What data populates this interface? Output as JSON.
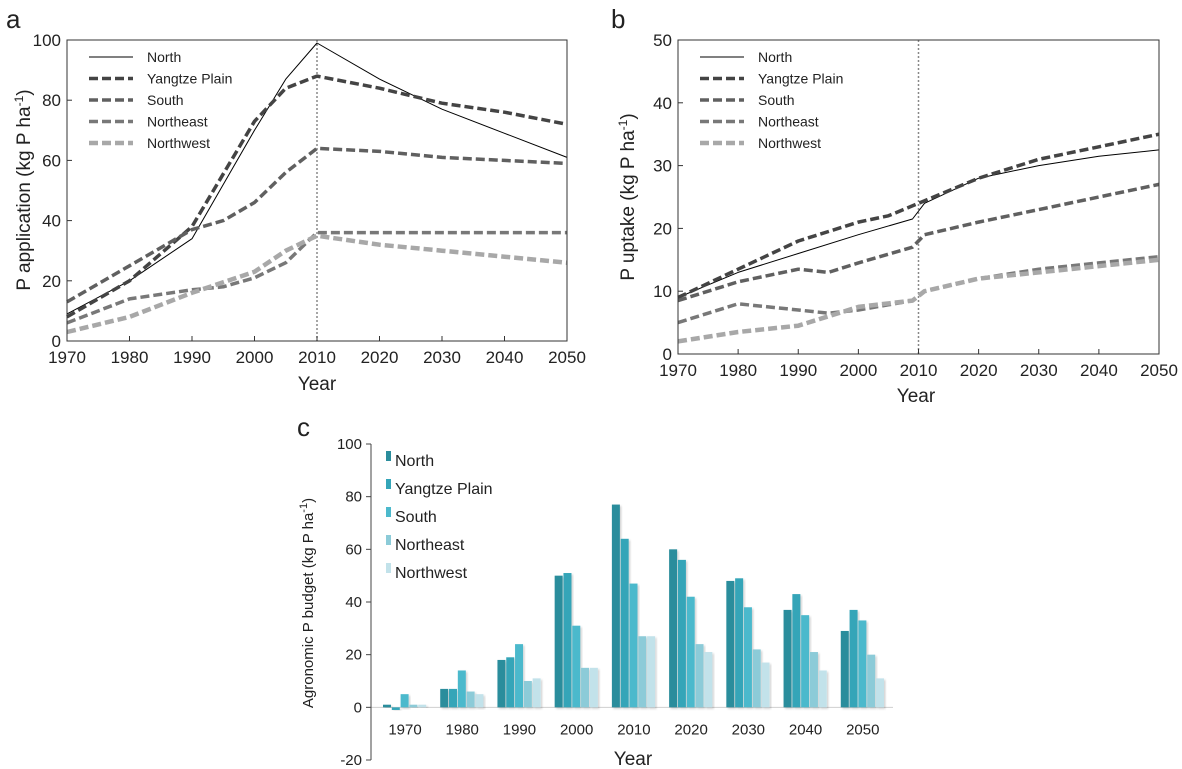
{
  "chart_data": [
    {
      "panel": "a",
      "type": "line",
      "xlabel": "Year",
      "ylabel": "P application (kg P ha-1)",
      "ylabel_parts": {
        "main": "P application (kg P ha",
        "sup": "-1",
        "end": ")"
      },
      "xlim": [
        1970,
        2050
      ],
      "ylim": [
        0,
        100
      ],
      "xticks": [
        1970,
        1980,
        1990,
        2000,
        2010,
        2020,
        2030,
        2040,
        2050
      ],
      "yticks": [
        0,
        20,
        40,
        60,
        80,
        100
      ],
      "vline_x": 2010,
      "legend_position": "top-left",
      "series": [
        {
          "name": "North",
          "color": "#000000",
          "style": "solid",
          "x": [
            1970,
            1980,
            1990,
            2000,
            2005,
            2010,
            2020,
            2030,
            2040,
            2050
          ],
          "y": [
            9,
            20,
            34,
            70,
            87,
            99,
            87,
            77,
            69,
            61
          ]
        },
        {
          "name": "Yangtze Plain",
          "color": "#444444",
          "style": "dashed",
          "x": [
            1970,
            1980,
            1990,
            2000,
            2005,
            2010,
            2020,
            2030,
            2040,
            2050
          ],
          "y": [
            8,
            20,
            38,
            73,
            84,
            88,
            84,
            79,
            76,
            72
          ]
        },
        {
          "name": "South",
          "color": "#606060",
          "style": "dashed",
          "x": [
            1970,
            1980,
            1990,
            1995,
            2000,
            2005,
            2010,
            2020,
            2030,
            2040,
            2050
          ],
          "y": [
            13,
            25,
            37,
            40,
            46,
            56,
            64,
            63,
            61,
            60,
            59
          ]
        },
        {
          "name": "Northeast",
          "color": "#787878",
          "style": "dashed",
          "x": [
            1970,
            1980,
            1990,
            1995,
            2000,
            2005,
            2010,
            2020,
            2030,
            2040,
            2050
          ],
          "y": [
            6,
            14,
            17,
            18,
            21,
            26,
            36,
            36,
            36,
            36,
            36
          ]
        },
        {
          "name": "Northwest",
          "color": "#a8a8a8",
          "style": "dashed",
          "x": [
            1970,
            1980,
            1990,
            2000,
            2005,
            2010,
            2020,
            2030,
            2040,
            2050
          ],
          "y": [
            3,
            8,
            16,
            23,
            30,
            35,
            32,
            30,
            28,
            26
          ]
        }
      ]
    },
    {
      "panel": "b",
      "type": "line",
      "xlabel": "Year",
      "ylabel": "P uptake (kg P ha-1)",
      "ylabel_parts": {
        "main": "P uptake (kg P ha",
        "sup": "-1",
        "end": ")"
      },
      "xlim": [
        1970,
        2050
      ],
      "ylim": [
        0,
        50
      ],
      "xticks": [
        1970,
        1980,
        1990,
        2000,
        2010,
        2020,
        2030,
        2040,
        2050
      ],
      "yticks": [
        0,
        10,
        20,
        30,
        40,
        50
      ],
      "vline_x": 2010,
      "legend_position": "top-left",
      "series": [
        {
          "name": "North",
          "color": "#000000",
          "style": "solid",
          "x": [
            1970,
            1980,
            1990,
            2000,
            2009,
            2011,
            2020,
            2030,
            2040,
            2050
          ],
          "y": [
            9,
            13,
            16,
            19,
            21.5,
            24,
            28,
            30,
            31.5,
            32.5
          ]
        },
        {
          "name": "Yangtze Plain",
          "color": "#444444",
          "style": "dashed",
          "x": [
            1970,
            1980,
            1990,
            2000,
            2005,
            2010,
            2020,
            2030,
            2040,
            2050
          ],
          "y": [
            9,
            13.5,
            18,
            21,
            22,
            24,
            28,
            31,
            33,
            35
          ]
        },
        {
          "name": "South",
          "color": "#606060",
          "style": "dashed",
          "x": [
            1970,
            1980,
            1990,
            1995,
            2000,
            2009,
            2011,
            2020,
            2030,
            2040,
            2050
          ],
          "y": [
            8.5,
            11.5,
            13.5,
            13,
            14.5,
            17,
            19,
            21,
            23,
            25,
            27
          ]
        },
        {
          "name": "Northeast",
          "color": "#787878",
          "style": "dashed",
          "x": [
            1970,
            1980,
            1990,
            1995,
            2000,
            2009,
            2011,
            2020,
            2030,
            2040,
            2050
          ],
          "y": [
            5,
            8,
            7,
            6.5,
            7,
            8.5,
            10,
            12,
            13.5,
            14.5,
            15.5
          ]
        },
        {
          "name": "Northwest",
          "color": "#a8a8a8",
          "style": "dashed",
          "x": [
            1970,
            1980,
            1990,
            2000,
            2009,
            2011,
            2020,
            2030,
            2040,
            2050
          ],
          "y": [
            2,
            3.5,
            4.5,
            7.5,
            8.5,
            10,
            12,
            13,
            14,
            15
          ]
        }
      ]
    },
    {
      "panel": "c",
      "type": "bar",
      "xlabel": "Year",
      "ylabel": "Agronomic P budget (kg P ha-1)",
      "ylabel_parts": {
        "main": "Agronomic P budget (kg P ha",
        "sup": "-1",
        "end": ")"
      },
      "ylim": [
        -20,
        100
      ],
      "yticks": [
        -20,
        0,
        20,
        40,
        60,
        80,
        100
      ],
      "legend_position": "top-left",
      "categories": [
        "1970",
        "1980",
        "1990",
        "2000",
        "2010",
        "2020",
        "2030",
        "2040",
        "2050"
      ],
      "series": [
        {
          "name": "North",
          "color": "#2b8d9c",
          "values": [
            1,
            7,
            18,
            50,
            77,
            60,
            48,
            37,
            29
          ]
        },
        {
          "name": "Yangtze Plain",
          "color": "#34a5b8",
          "values": [
            -1,
            7,
            19,
            51,
            64,
            56,
            49,
            43,
            37
          ]
        },
        {
          "name": "South",
          "color": "#4cb9cc",
          "values": [
            5,
            14,
            24,
            31,
            47,
            42,
            38,
            35,
            33
          ]
        },
        {
          "name": "Northeast",
          "color": "#8ccbd8",
          "values": [
            1,
            6,
            10,
            15,
            27,
            24,
            22,
            21,
            20
          ]
        },
        {
          "name": "Northwest",
          "color": "#c2e2ea",
          "values": [
            1,
            5,
            11,
            15,
            27,
            21,
            17,
            14,
            11
          ]
        }
      ]
    }
  ]
}
